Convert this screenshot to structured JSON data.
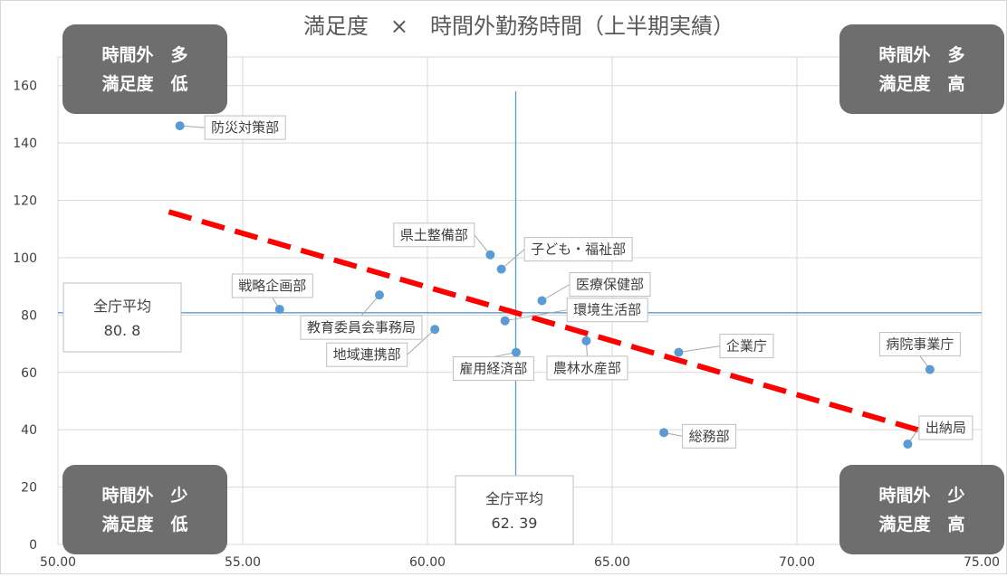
{
  "chart_data": {
    "type": "scatter",
    "title": "満足度　×　時間外勤務時間（上半期実績）",
    "xlim": [
      50,
      75
    ],
    "ylim": [
      0,
      170
    ],
    "x_ticks": [
      50,
      55,
      60,
      65,
      70,
      75
    ],
    "x_tick_labels": [
      "50.00",
      "55.00",
      "60.00",
      "65.00",
      "70.00",
      "75.00"
    ],
    "y_ticks": [
      0,
      20,
      40,
      60,
      80,
      100,
      120,
      140,
      160
    ],
    "y_tick_labels": [
      "0",
      "20",
      "40",
      "60",
      "80",
      "100",
      "120",
      "140",
      "160"
    ],
    "grid": true,
    "point_color": "#5b9bd5",
    "points": [
      {
        "label": "防災対策部",
        "x": 53.3,
        "y": 146
      },
      {
        "label": "県土整備部",
        "x": 61.7,
        "y": 101
      },
      {
        "label": "子ども・福祉部",
        "x": 62.0,
        "y": 96
      },
      {
        "label": "医療保健部",
        "x": 63.1,
        "y": 85
      },
      {
        "label": "戦略企画部",
        "x": 56.0,
        "y": 82
      },
      {
        "label": "教育委員会事務局",
        "x": 58.7,
        "y": 87
      },
      {
        "label": "環境生活部",
        "x": 62.1,
        "y": 78
      },
      {
        "label": "地域連携部",
        "x": 60.2,
        "y": 75
      },
      {
        "label": "雇用経済部",
        "x": 62.4,
        "y": 67
      },
      {
        "label": "農林水産部",
        "x": 64.3,
        "y": 71
      },
      {
        "label": "企業庁",
        "x": 66.8,
        "y": 67
      },
      {
        "label": "病院事業庁",
        "x": 73.6,
        "y": 61
      },
      {
        "label": "総務部",
        "x": 66.4,
        "y": 39
      },
      {
        "label": "出納局",
        "x": 73.0,
        "y": 35
      }
    ],
    "avg_y": {
      "label": "全庁平均",
      "value": 80.8,
      "value_text": "80. 8"
    },
    "avg_x": {
      "label": "全庁平均",
      "value": 62.39,
      "value_text": "62. 39"
    },
    "trend_line": {
      "x": [
        53.0,
        73.8
      ],
      "y": [
        116,
        38
      ],
      "color": "#ff0000",
      "style": "dashed"
    },
    "avg_line_color": "#5b9bd5",
    "quadrants": {
      "top_left": [
        "時間外　多",
        "満足度　低"
      ],
      "top_right": [
        "時間外　多",
        "満足度　高"
      ],
      "bottom_left": [
        "時間外　少",
        "満足度　低"
      ],
      "bottom_right": [
        "時間外　少",
        "満足度　高"
      ]
    },
    "quadrant_box_color": "#6e6e6e"
  }
}
